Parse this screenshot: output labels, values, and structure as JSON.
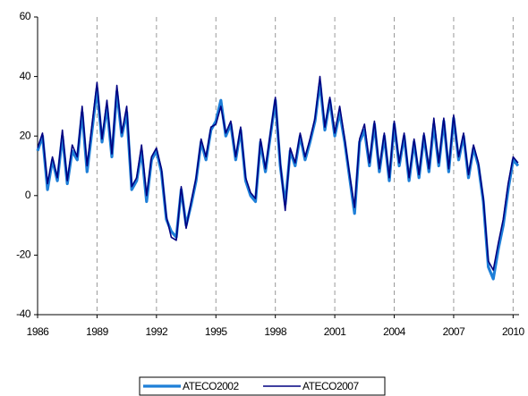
{
  "chart_data": {
    "type": "line",
    "x": [
      1986,
      1986.25,
      1986.5,
      1986.75,
      1987,
      1987.25,
      1987.5,
      1987.75,
      1988,
      1988.25,
      1988.5,
      1988.75,
      1989,
      1989.25,
      1989.5,
      1989.75,
      1990,
      1990.25,
      1990.5,
      1990.75,
      1991,
      1991.25,
      1991.5,
      1991.75,
      1992,
      1992.25,
      1992.5,
      1992.75,
      1993,
      1993.25,
      1993.5,
      1993.75,
      1994,
      1994.25,
      1994.5,
      1994.75,
      1995,
      1995.25,
      1995.5,
      1995.75,
      1996,
      1996.25,
      1996.5,
      1996.75,
      1997,
      1997.25,
      1997.5,
      1997.75,
      1998,
      1998.25,
      1998.5,
      1998.75,
      1999,
      1999.25,
      1999.5,
      1999.75,
      2000,
      2000.25,
      2000.5,
      2000.75,
      2001,
      2001.25,
      2001.5,
      2001.75,
      2002,
      2002.25,
      2002.5,
      2002.75,
      2003,
      2003.25,
      2003.5,
      2003.75,
      2004,
      2004.25,
      2004.5,
      2004.75,
      2005,
      2005.25,
      2005.5,
      2005.75,
      2006,
      2006.25,
      2006.5,
      2006.75,
      2007,
      2007.25,
      2007.5,
      2007.75,
      2008,
      2008.25,
      2008.5,
      2008.75,
      2009,
      2009.25,
      2009.5,
      2009.75,
      2010,
      2010.25
    ],
    "series": [
      {
        "name": "ATECO2002",
        "color": "#1e7fd8",
        "values": [
          15,
          20,
          2,
          12,
          5,
          20,
          4,
          15,
          12,
          28,
          8,
          22,
          36,
          18,
          30,
          13,
          35,
          20,
          28,
          2,
          5,
          15,
          -2,
          12,
          15,
          8,
          -8,
          -12,
          -14,
          2,
          -10,
          -3,
          5,
          18,
          12,
          22,
          25,
          32,
          20,
          24,
          12,
          22,
          5,
          0,
          -2,
          18,
          8,
          20,
          32,
          10,
          -3,
          15,
          10,
          20,
          12,
          18,
          25,
          38,
          22,
          32,
          20,
          28,
          18,
          6,
          -6,
          18,
          22,
          10,
          24,
          8,
          20,
          5,
          24,
          10,
          20,
          5,
          18,
          6,
          20,
          8,
          24,
          10,
          25,
          8,
          26,
          12,
          20,
          6,
          16,
          10,
          -2,
          -24,
          -28,
          -18,
          -10,
          2,
          12,
          10
        ]
      },
      {
        "name": "ATECO2007",
        "color": "#000080",
        "values": [
          16,
          21,
          4,
          13,
          6,
          22,
          5,
          17,
          13,
          30,
          10,
          24,
          38,
          19,
          32,
          14,
          37,
          21,
          30,
          3,
          6,
          17,
          0,
          13,
          16,
          9,
          -7,
          -14,
          -15,
          3,
          -11,
          -2,
          6,
          19,
          13,
          23,
          24,
          30,
          21,
          25,
          13,
          23,
          6,
          1,
          -1,
          19,
          9,
          21,
          33,
          11,
          -5,
          16,
          11,
          21,
          13,
          19,
          26,
          40,
          23,
          33,
          21,
          30,
          19,
          7,
          -4,
          19,
          24,
          11,
          25,
          9,
          21,
          6,
          25,
          11,
          21,
          6,
          19,
          7,
          21,
          9,
          26,
          11,
          26,
          9,
          27,
          13,
          21,
          7,
          17,
          11,
          -1,
          -22,
          -25,
          -16,
          -8,
          4,
          13,
          11
        ]
      }
    ],
    "xlim": [
      1986,
      2010.3
    ],
    "xticks": [
      1986,
      1989,
      1992,
      1995,
      1998,
      2001,
      2004,
      2007,
      2010
    ],
    "ylim": [
      -40,
      60
    ],
    "yticks": [
      -40,
      -20,
      0,
      20,
      40,
      60
    ],
    "grid": true,
    "legend": "bottom"
  }
}
